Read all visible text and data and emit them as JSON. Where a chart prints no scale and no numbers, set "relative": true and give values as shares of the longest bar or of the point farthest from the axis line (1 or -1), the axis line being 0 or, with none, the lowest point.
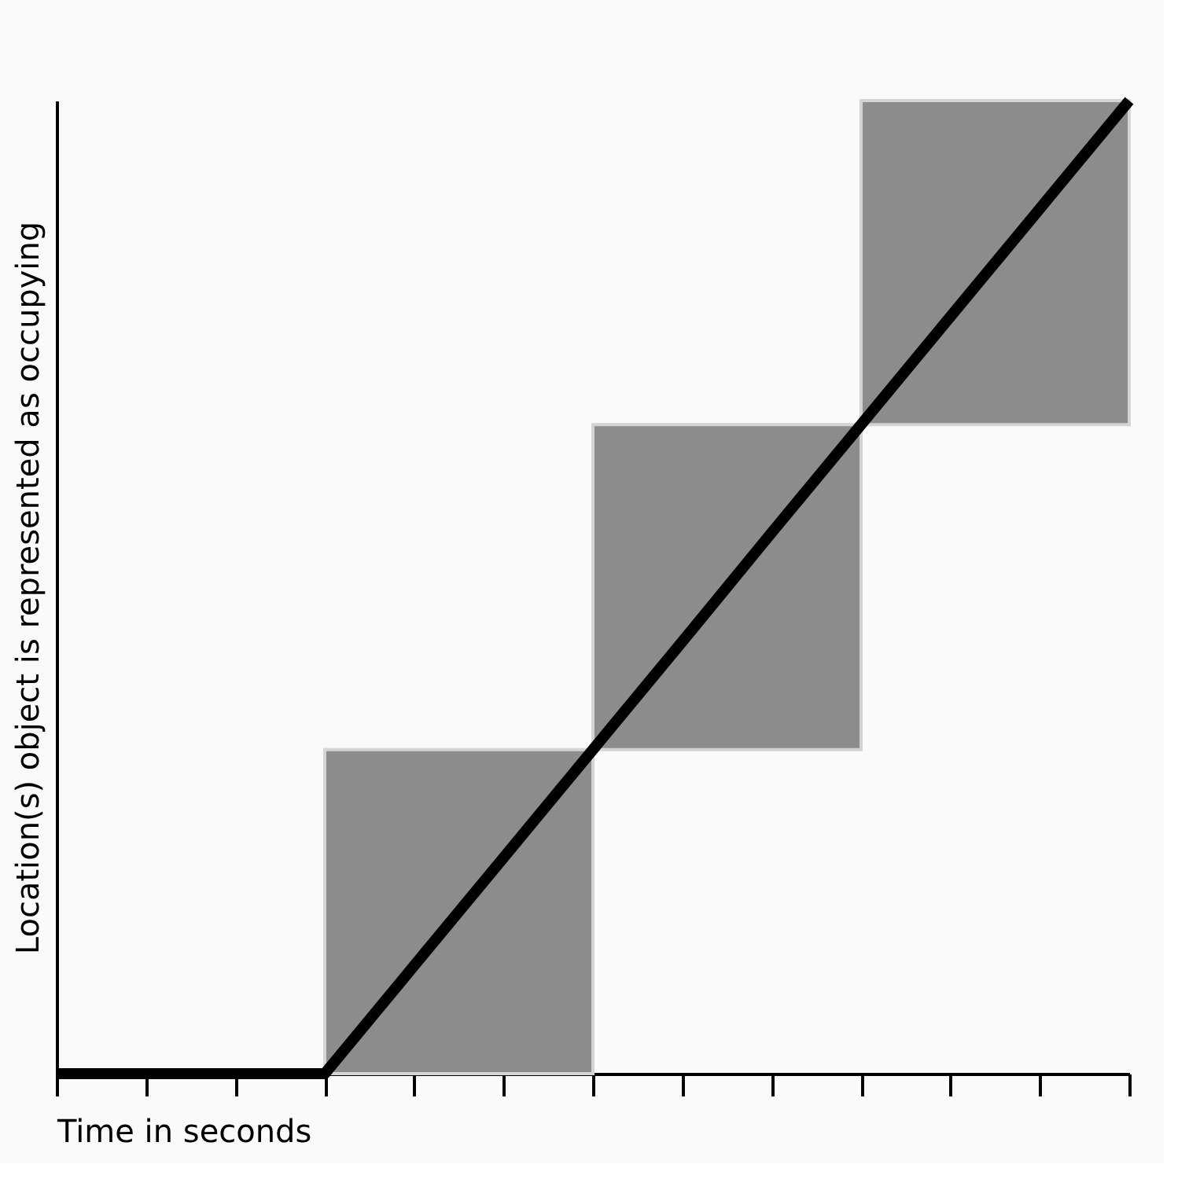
{
  "chart_data": {
    "type": "line",
    "xlabel": "Time in seconds",
    "ylabel": "Location(s) object is represented as occupying",
    "relative": true,
    "marker": "none",
    "line_style": "solid",
    "categories": [
      null,
      null,
      null,
      null,
      null,
      null,
      null,
      null,
      null,
      null,
      null,
      null,
      null
    ],
    "series": [
      {
        "color": "#000000",
        "values": [
          0,
          0,
          0,
          0,
          0.111,
          0.222,
          0.333,
          0.444,
          0.556,
          0.667,
          0.778,
          0.889,
          1
        ],
        "lower": [
          null,
          null,
          null,
          0,
          0,
          0,
          0.333,
          0.333,
          0.333,
          0.667,
          0.667,
          0.667,
          0.667
        ],
        "upper": [
          null,
          null,
          null,
          0.333,
          0.333,
          0.333,
          0.667,
          0.667,
          0.667,
          1,
          1,
          1,
          1
        ]
      }
    ]
  }
}
